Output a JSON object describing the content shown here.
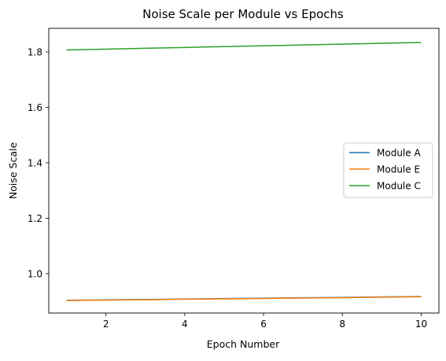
{
  "chart_data": {
    "type": "line",
    "title": "Noise Scale per Module vs Epochs",
    "xlabel": "Epoch Number",
    "ylabel": "Noise Scale",
    "x": [
      1,
      2,
      3,
      4,
      5,
      6,
      7,
      8,
      9,
      10
    ],
    "xlim": [
      0.55,
      10.45
    ],
    "ylim": [
      0.858,
      1.885
    ],
    "xticks": [
      2,
      4,
      6,
      8,
      10
    ],
    "yticks": [
      1.0,
      1.2,
      1.4,
      1.6,
      1.8
    ],
    "ytick_labels": [
      "1.0",
      "1.2",
      "1.4",
      "1.6",
      "1.8"
    ],
    "grid": false,
    "legend_position": "center-right",
    "series": [
      {
        "name": "Module A",
        "color": "#1f77b4",
        "values": [
          0.904,
          0.9055,
          0.907,
          0.9085,
          0.91,
          0.9115,
          0.913,
          0.9145,
          0.916,
          0.9175
        ]
      },
      {
        "name": "Module E",
        "color": "#ff7f0e",
        "values": [
          0.903,
          0.9045,
          0.906,
          0.9075,
          0.909,
          0.9105,
          0.912,
          0.9135,
          0.915,
          0.9165
        ]
      },
      {
        "name": "Module C",
        "color": "#2ca02c",
        "values": [
          1.807,
          1.81,
          1.813,
          1.816,
          1.819,
          1.822,
          1.825,
          1.828,
          1.831,
          1.834
        ]
      }
    ]
  }
}
